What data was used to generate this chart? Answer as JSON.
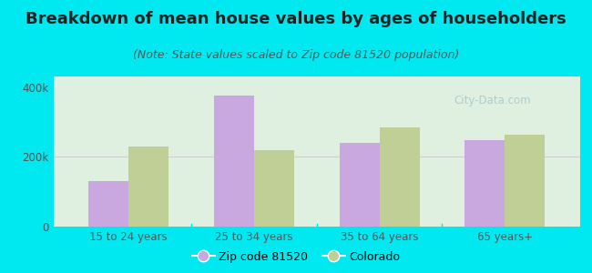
{
  "title": "Breakdown of mean house values by ages of householders",
  "subtitle": "(Note: State values scaled to Zip code 81520 population)",
  "categories": [
    "15 to 24 years",
    "25 to 34 years",
    "35 to 64 years",
    "65 years+"
  ],
  "zip_values": [
    130000,
    375000,
    240000,
    248000
  ],
  "state_values": [
    230000,
    220000,
    285000,
    262000
  ],
  "zip_color": "#c9a8e0",
  "state_color": "#bfcf96",
  "background_outer": "#00e8f0",
  "background_inner": "#e0f0e0",
  "ylim": [
    0,
    430000
  ],
  "ytick_labels": [
    "0",
    "200k",
    "400k"
  ],
  "ytick_vals": [
    0,
    200000,
    400000
  ],
  "legend_zip_label": "Zip code 81520",
  "legend_state_label": "Colorado",
  "bar_width": 0.32,
  "title_fontsize": 13,
  "subtitle_fontsize": 9,
  "tick_fontsize": 8.5,
  "legend_fontsize": 9,
  "watermark": "City-Data.com",
  "watermark_color": "#a0c8d0"
}
